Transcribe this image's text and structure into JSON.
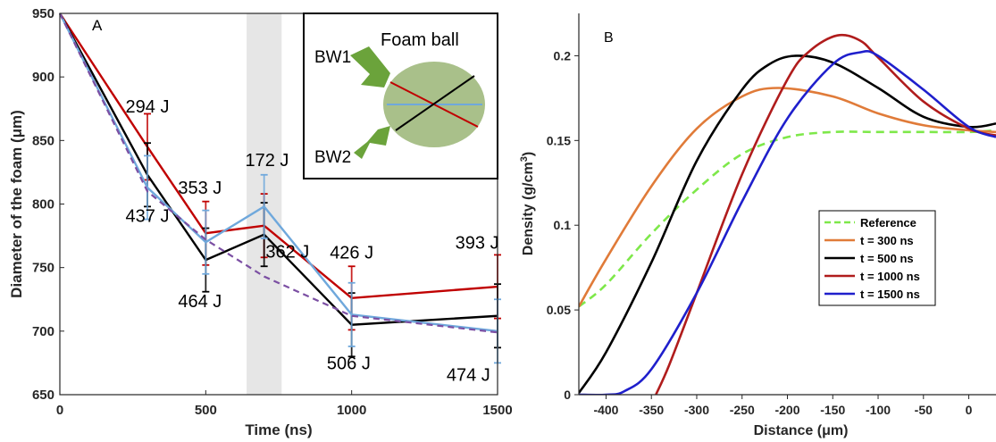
{
  "chart_data": [
    {
      "panel_label": "A",
      "type": "line",
      "xlabel": "Time (ns)",
      "ylabel": "Diameter of the foam (μm)",
      "xlim": [
        0,
        1500
      ],
      "ylim": [
        650,
        950
      ],
      "xticks": [
        0,
        500,
        1000,
        1500
      ],
      "yticks": [
        650,
        700,
        750,
        800,
        850,
        900,
        950
      ],
      "shaded_band": [
        640,
        760
      ],
      "series": [
        {
          "color": "#c00000",
          "dash": false,
          "x": [
            0,
            300,
            500,
            700,
            1000,
            1500
          ],
          "y": [
            950,
            845,
            777,
            783,
            726,
            735
          ],
          "err": [
            0,
            26,
            25,
            25,
            25,
            25
          ]
        },
        {
          "color": "#000000",
          "dash": false,
          "x": [
            0,
            300,
            500,
            700,
            1000,
            1500
          ],
          "y": [
            950,
            823,
            756,
            776,
            705,
            712
          ],
          "err": [
            0,
            25,
            25,
            25,
            25,
            25
          ]
        },
        {
          "color": "#6fa8dc",
          "dash": false,
          "x": [
            0,
            300,
            500,
            700,
            1000,
            1500
          ],
          "y": [
            950,
            813,
            770,
            798,
            713,
            700
          ],
          "err": [
            0,
            25,
            25,
            25,
            25,
            25
          ]
        },
        {
          "color": "#7b4fa3",
          "dash": true,
          "x": [
            0,
            300,
            500,
            700,
            1000,
            1500
          ],
          "y": [
            950,
            810,
            772,
            743,
            712,
            699
          ],
          "err": []
        }
      ],
      "annotations": [
        {
          "text": "294 J",
          "x": 300,
          "y": 872
        },
        {
          "text": "437 J",
          "x": 300,
          "y": 786
        },
        {
          "text": "353 J",
          "x": 480,
          "y": 808
        },
        {
          "text": "464 J",
          "x": 480,
          "y": 719
        },
        {
          "text": "172 J",
          "x": 710,
          "y": 830
        },
        {
          "text": "362 J",
          "x": 780,
          "y": 758
        },
        {
          "text": "426 J",
          "x": 1000,
          "y": 757
        },
        {
          "text": "506 J",
          "x": 990,
          "y": 670
        },
        {
          "text": "393 J",
          "x": 1430,
          "y": 765
        },
        {
          "text": "474 J",
          "x": 1400,
          "y": 661
        }
      ],
      "inset": {
        "title": "Foam ball",
        "labels": [
          "BW1",
          "BW2"
        ]
      }
    },
    {
      "panel_label": "B",
      "type": "line",
      "xlabel": "Distance (μm)",
      "ylabel": "Density (g/cm",
      "ylabel_sup": "3",
      "ylabel_end": ")",
      "xlim": [
        -430,
        30
      ],
      "ylim": [
        0,
        0.225
      ],
      "xticks": [
        -400,
        -350,
        -300,
        -250,
        -200,
        -150,
        -100,
        -50,
        0
      ],
      "yticks": [
        0,
        0.05,
        0.1,
        0.15,
        0.2
      ],
      "ytick_labels": [
        "0",
        "0.05",
        "0.1",
        "0.15",
        "0.2"
      ],
      "legend_position": "center",
      "series": [
        {
          "name": "Reference",
          "color": "#7ee84a",
          "dash": true,
          "x": [
            -430,
            -400,
            -350,
            -300,
            -250,
            -200,
            -150,
            -100,
            -50,
            0,
            30
          ],
          "y": [
            0.052,
            0.065,
            0.095,
            0.121,
            0.142,
            0.152,
            0.155,
            0.155,
            0.155,
            0.155,
            0.156
          ]
        },
        {
          "name": "t = 300 ns",
          "color": "#e07b39",
          "dash": false,
          "x": [
            -430,
            -400,
            -350,
            -300,
            -250,
            -210,
            -150,
            -100,
            -50,
            0,
            30
          ],
          "y": [
            0.052,
            0.08,
            0.123,
            0.157,
            0.176,
            0.181,
            0.176,
            0.166,
            0.159,
            0.156,
            0.155
          ]
        },
        {
          "name": "t = 500 ns",
          "color": "#000000",
          "dash": false,
          "x": [
            -430,
            -400,
            -350,
            -300,
            -250,
            -220,
            -190,
            -150,
            -100,
            -50,
            0,
            30
          ],
          "y": [
            0.001,
            0.025,
            0.078,
            0.138,
            0.18,
            0.195,
            0.2,
            0.196,
            0.181,
            0.164,
            0.158,
            0.16
          ]
        },
        {
          "name": "t = 1000 ns",
          "color": "#b01c1c",
          "dash": false,
          "x": [
            -345,
            -330,
            -300,
            -250,
            -200,
            -175,
            -145,
            -120,
            -100,
            -50,
            0,
            30
          ],
          "y": [
            0.0,
            0.018,
            0.06,
            0.13,
            0.186,
            0.203,
            0.212,
            0.209,
            0.199,
            0.173,
            0.157,
            0.153
          ]
        },
        {
          "name": "t = 1500 ns",
          "color": "#1f1fcc",
          "dash": false,
          "x": [
            -430,
            -400,
            -380,
            -350,
            -300,
            -250,
            -200,
            -150,
            -120,
            -100,
            -50,
            0,
            30
          ],
          "y": [
            0.0,
            0.0,
            0.002,
            0.015,
            0.06,
            0.114,
            0.163,
            0.195,
            0.202,
            0.2,
            0.18,
            0.158,
            0.152
          ]
        }
      ]
    }
  ]
}
